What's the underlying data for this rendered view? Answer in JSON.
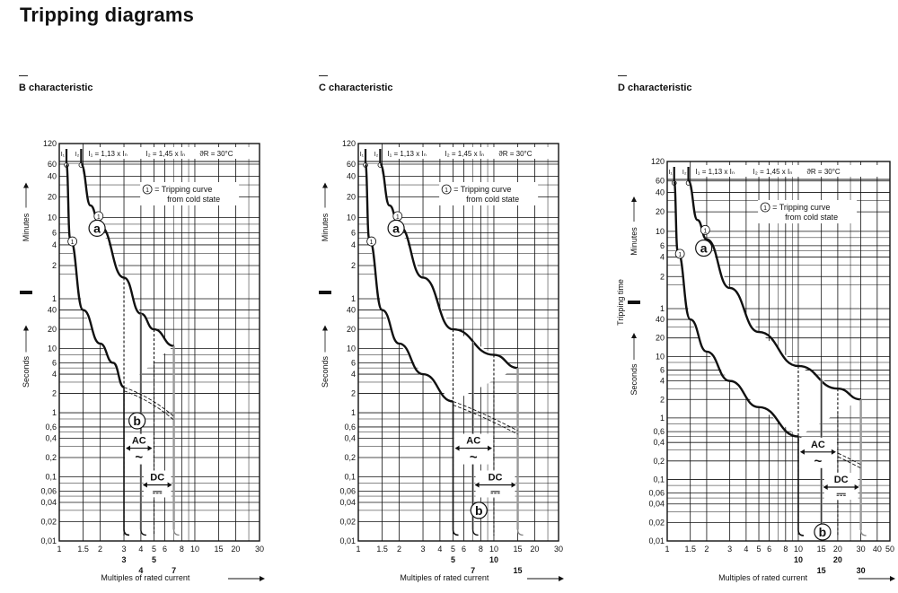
{
  "title": "Tripping diagrams",
  "common": {
    "legend_marker": "1",
    "legend_text_1": "= Tripping curve",
    "legend_text_2": "from cold state",
    "formula_i1": "I₁ = 1,13 x Iₙ",
    "formula_i2": "I₂ = 1,45 x Iₙ",
    "formula_t": "ϑR = 30°C",
    "x_title": "Multiples of rated current",
    "minutes_label": "Minutes",
    "seconds_label": "Seconds",
    "tripping_time_label": "Tripping time",
    "zone_a": "a",
    "zone_b": "b",
    "ac_label": "AC",
    "dc_label": "DC",
    "ac_symbol": "~",
    "dc_symbol": "⎓",
    "i1_mark": "I₁",
    "i2_mark": "I₂",
    "y_ticks_minutes": [
      "120",
      "60",
      "40",
      "20",
      "10",
      "6",
      "4",
      "2",
      "1"
    ],
    "y_ticks_seconds": [
      "40",
      "20",
      "10",
      "6",
      "4",
      "2",
      "1",
      "0,6",
      "0,4",
      "0,2",
      "0,1",
      "0,06",
      "0,04",
      "0,02",
      "0,01"
    ],
    "x_ticks": [
      "1",
      "1.5",
      "2",
      "3",
      "4",
      "5",
      "6",
      "8",
      "10",
      "15",
      "20",
      "30"
    ],
    "x_ticks_d": [
      "1",
      "1.5",
      "2",
      "3",
      "4",
      "5",
      "6",
      "8",
      "10",
      "15",
      "20",
      "30",
      "40",
      "50"
    ]
  },
  "charts": [
    {
      "title": "B characteristic",
      "ac_limits": [
        "3",
        "5"
      ],
      "dc_limits": [
        "4",
        "7"
      ],
      "chart_data": {
        "type": "line",
        "title": "B characteristic",
        "xlabel": "Multiples of rated current",
        "ylabel": "Minutes / Seconds",
        "x_scale": "log",
        "y_scale": "log",
        "xlim": [
          1,
          30
        ],
        "series": [
          {
            "name": "upper",
            "points": [
              [
                1.45,
                3600
              ],
              [
                1.7,
                900
              ],
              [
                2,
                450
              ],
              [
                3,
                80
              ],
              [
                4,
                35
              ],
              [
                5,
                20
              ],
              [
                7,
                11
              ]
            ]
          },
          {
            "name": "lower",
            "points": [
              [
                1.13,
                3600
              ],
              [
                1.2,
                300
              ],
              [
                1.5,
                40
              ],
              [
                2,
                12
              ],
              [
                2.5,
                6
              ],
              [
                3,
                2.5
              ]
            ]
          }
        ],
        "ac_range": [
          3,
          5
        ],
        "dc_range": [
          4,
          7
        ]
      }
    },
    {
      "title": "C characteristic",
      "ac_limits": [
        "5",
        "10"
      ],
      "dc_limits": [
        "7",
        "15"
      ],
      "chart_data": {
        "type": "line",
        "title": "C characteristic",
        "xlabel": "Multiples of rated current",
        "ylabel": "Minutes / Seconds",
        "x_scale": "log",
        "y_scale": "log",
        "xlim": [
          1,
          30
        ],
        "series": [
          {
            "name": "upper",
            "points": [
              [
                1.45,
                3600
              ],
              [
                1.7,
                900
              ],
              [
                2,
                450
              ],
              [
                3,
                80
              ],
              [
                5,
                20
              ],
              [
                10,
                8
              ],
              [
                15,
                5
              ]
            ]
          },
          {
            "name": "lower",
            "points": [
              [
                1.13,
                3600
              ],
              [
                1.2,
                300
              ],
              [
                1.5,
                40
              ],
              [
                2,
                12
              ],
              [
                3,
                4
              ],
              [
                5,
                1.5
              ]
            ]
          }
        ],
        "ac_range": [
          5,
          10
        ],
        "dc_range": [
          7,
          15
        ]
      }
    },
    {
      "title": "D characteristic",
      "ac_limits": [
        "10",
        "20"
      ],
      "dc_limits": [
        "15",
        "30"
      ],
      "chart_data": {
        "type": "line",
        "title": "D characteristic",
        "xlabel": "Multiples of rated current",
        "ylabel": "Tripping time",
        "x_scale": "log",
        "y_scale": "log",
        "xlim": [
          1,
          50
        ],
        "series": [
          {
            "name": "upper",
            "points": [
              [
                1.45,
                3600
              ],
              [
                1.7,
                900
              ],
              [
                2,
                450
              ],
              [
                3,
                80
              ],
              [
                5,
                25
              ],
              [
                10,
                7
              ],
              [
                20,
                3
              ],
              [
                30,
                2
              ]
            ]
          },
          {
            "name": "lower",
            "points": [
              [
                1.13,
                3600
              ],
              [
                1.2,
                300
              ],
              [
                1.5,
                40
              ],
              [
                2,
                12
              ],
              [
                3,
                4
              ],
              [
                5,
                1.5
              ],
              [
                10,
                0.5
              ]
            ]
          }
        ],
        "ac_range": [
          10,
          20
        ],
        "dc_range": [
          15,
          30
        ]
      }
    }
  ]
}
